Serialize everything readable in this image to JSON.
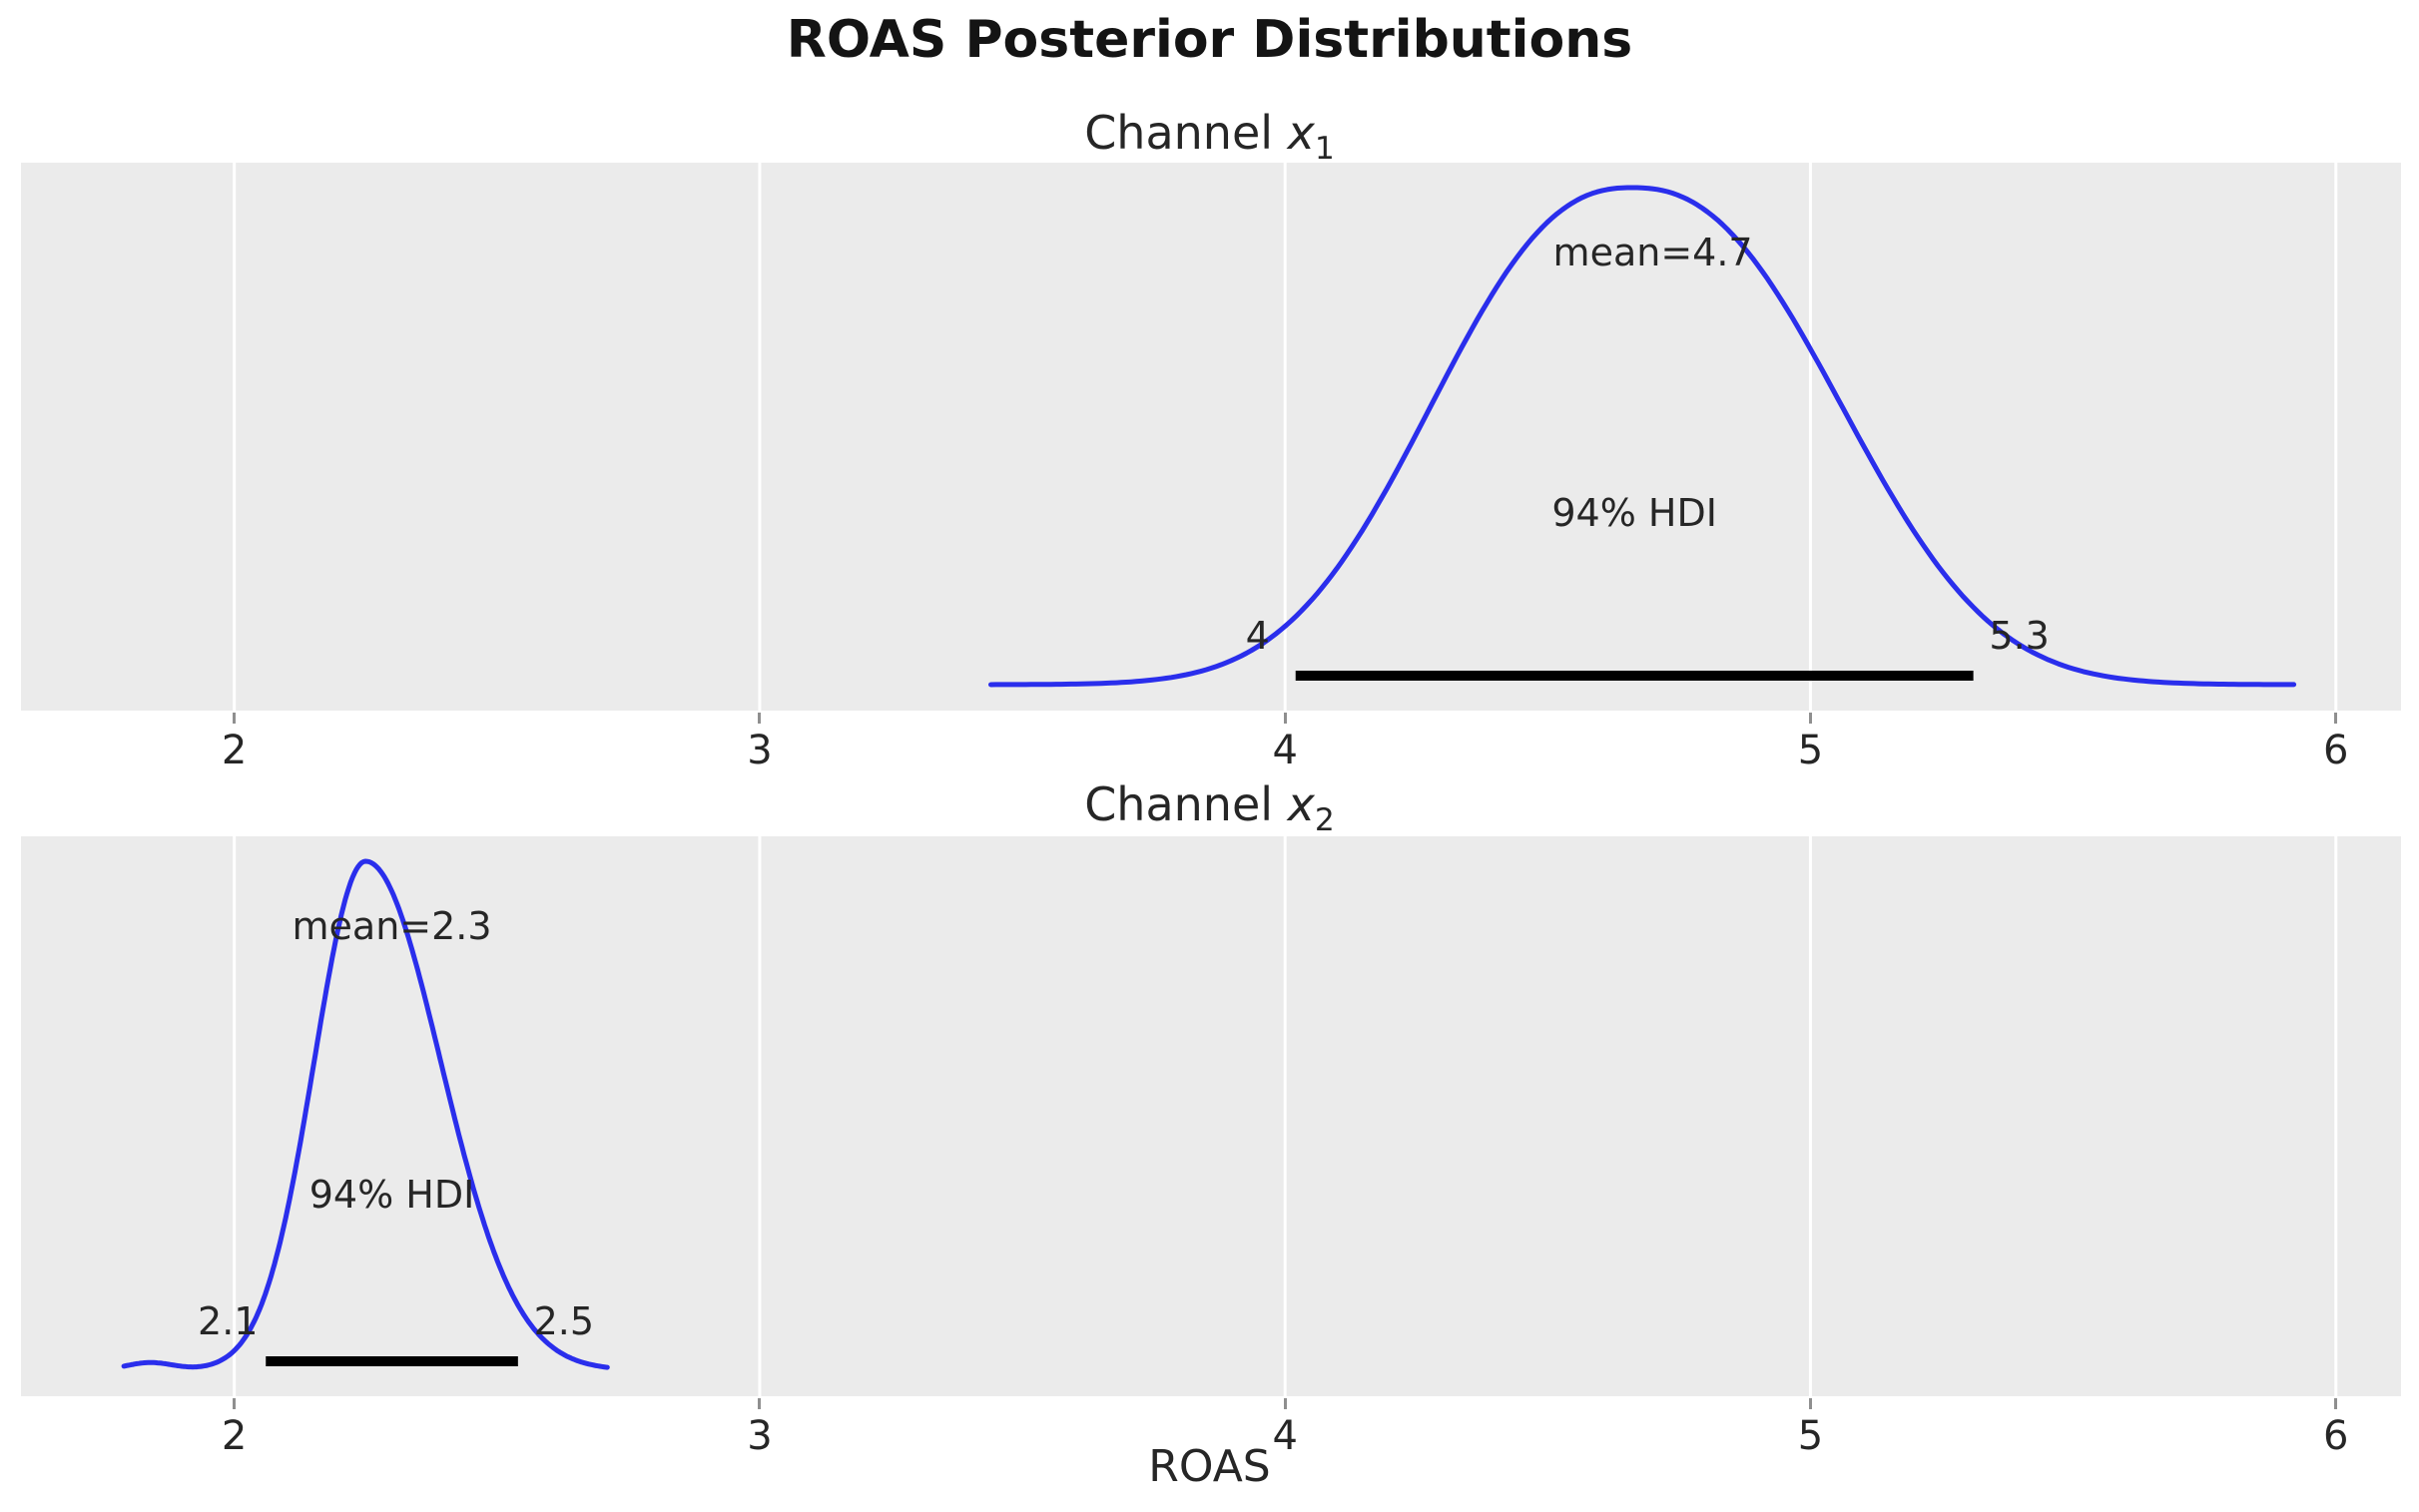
{
  "chart_data": {
    "type": "kde",
    "title": "ROAS Posterior Distributions",
    "xlabel": "ROAS",
    "x_ticks": [
      2,
      3,
      4,
      5,
      6
    ],
    "xlim": [
      1.594,
      6.124
    ],
    "grid": "vertical white gridlines on light-gray panel background",
    "legend": "none",
    "panels": [
      {
        "title_prefix": "Channel",
        "var_name": "x",
        "var_sub": "1",
        "mean": 4.7,
        "mean_label": "mean=4.7",
        "hdi_label": "94% HDI",
        "hdi_probability": 0.94,
        "hdi_low": 4.02,
        "hdi_high": 5.31,
        "hdi_low_label": "4",
        "hdi_high_label": "5.3",
        "kde": {
          "peak": 4.66,
          "sigma_left": 0.36,
          "sigma_right": 0.376,
          "shape": 2.4,
          "support": [
            3.44,
            5.92
          ]
        }
      },
      {
        "title_prefix": "Channel",
        "var_name": "x",
        "var_sub": "2",
        "mean": 2.3,
        "mean_label": "mean=2.3",
        "hdi_label": "94% HDI",
        "hdi_probability": 0.94,
        "hdi_low": 2.06,
        "hdi_high": 2.54,
        "hdi_low_label": "2.1",
        "hdi_high_label": "2.5",
        "kde": {
          "peak": 2.25,
          "sigma_left": 0.098,
          "sigma_right": 0.143,
          "shape": 2.0,
          "support": [
            1.79,
            2.71
          ],
          "left_bump": {
            "center": 1.84,
            "sigma": 0.045,
            "amp": 0.015
          }
        }
      }
    ],
    "colors": {
      "curve": "#2a2eec",
      "hdi_bar": "#000000",
      "plot_bg": "#ebebeb",
      "gridline": "#ffffff",
      "text": "#262626",
      "tick": "#8f8f8f"
    }
  }
}
